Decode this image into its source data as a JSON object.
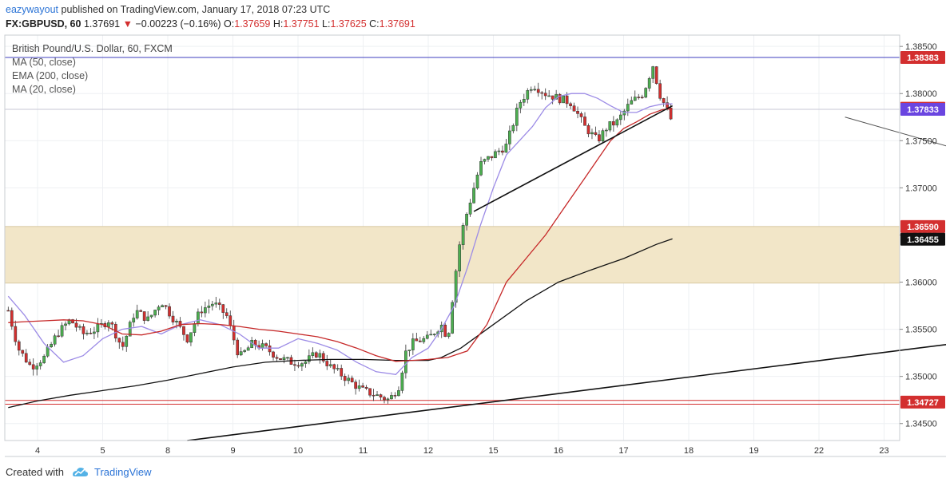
{
  "header": {
    "author": "eazywayout",
    "published_text": "published on TradingView.com, January 17, 2018 07:23 UTC",
    "symbol": "FX:GBPUSD, 60",
    "last": "1.37691",
    "change_arrow": "▼",
    "change": "−0.00223 (−0.16%)",
    "o_label": "O:",
    "o": "1.37659",
    "h_label": "H:",
    "h": "1.37751",
    "l_label": "L:",
    "l": "1.37625",
    "c_label": "C:",
    "c": "1.37691"
  },
  "legend": {
    "title": "British Pound/U.S. Dollar, 60, FXCM",
    "ma50": "MA (50, close)",
    "ema200": "EMA (200, close)",
    "ma20": "MA (20, close)"
  },
  "footer": {
    "created_with": "Created with",
    "brand": "TradingView"
  },
  "colors": {
    "up": "#4caf50",
    "down": "#d32f2f",
    "ma50": "#9c8be6",
    "ema200": "#111111",
    "ma20": "#c62828",
    "zone": "#f2e6c8",
    "hline_top": "#3f3fbf",
    "hline_bottom": "#d32f2f"
  },
  "chart_data": {
    "type": "candlestick",
    "title": "British Pound/U.S. Dollar, 60, FXCM",
    "x_ticks": [
      "4",
      "5",
      "8",
      "9",
      "10",
      "11",
      "12",
      "15",
      "16",
      "17",
      "18",
      "19",
      "22",
      "23"
    ],
    "y_ticks": [
      "1.38500",
      "1.38000",
      "1.37500",
      "1.37000",
      "1.36500",
      "1.36000",
      "1.35500",
      "1.35000",
      "1.34500"
    ],
    "ylim": [
      1.3432,
      1.3862
    ],
    "price_labels": [
      {
        "value": 1.38383,
        "text": "1.38383",
        "bg": "#d32f2f"
      },
      {
        "value": 1.37844,
        "text": "1.37844",
        "bg": "#d32f2f"
      },
      {
        "value": 1.37833,
        "text": "1.37833",
        "bg": "#6a45e0"
      },
      {
        "value": 1.3659,
        "text": "1.36590",
        "bg": "#d32f2f"
      },
      {
        "value": 1.36455,
        "text": "1.36455",
        "bg": "#111111"
      },
      {
        "value": 1.34727,
        "text": "1.34727",
        "bg": "#d32f2f"
      }
    ],
    "zone": {
      "top": 1.3659,
      "bottom": 1.3599
    },
    "horizontal_lines": [
      {
        "value": 1.38383,
        "color": "#3f3fbf"
      },
      {
        "value": 1.34745,
        "color": "#d32f2f"
      },
      {
        "value": 1.34705,
        "color": "#d32f2f"
      }
    ],
    "trendlines": [
      {
        "from": {
          "x": 2.3,
          "y": 1.3432
        },
        "to": {
          "x": 15.58,
          "y": 1.3548
        },
        "color": "#111111"
      },
      {
        "from": {
          "x": 6.7,
          "y": 1.3675
        },
        "to": {
          "x": 9.75,
          "y": 1.3787
        },
        "color": "#111111"
      },
      {
        "from": {
          "x": 12.4,
          "y": 1.3775
        },
        "to": {
          "x": 15.25,
          "y": 1.3719
        },
        "color": "#555555"
      }
    ],
    "series": [
      {
        "name": "MA (50, close)",
        "color": "#9c8be6",
        "x": [
          -0.45,
          -0.2,
          0.1,
          0.4,
          0.7,
          1.0,
          1.3,
          1.6,
          1.9,
          2.2,
          2.5,
          2.8,
          3.1,
          3.4,
          3.7,
          4.0,
          4.3,
          4.6,
          4.9,
          5.2,
          5.5,
          5.75,
          6.0,
          6.2,
          6.4,
          6.6,
          6.8,
          7.0,
          7.2,
          7.4,
          7.6,
          7.8,
          8.0,
          8.2,
          8.4,
          8.6,
          8.8,
          9.0,
          9.2,
          9.4,
          9.6,
          9.75
        ],
        "y": [
          1.3585,
          1.3565,
          1.3535,
          1.3515,
          1.3522,
          1.354,
          1.355,
          1.3553,
          1.3545,
          1.3555,
          1.356,
          1.3555,
          1.3545,
          1.353,
          1.353,
          1.354,
          1.3535,
          1.3528,
          1.3515,
          1.3505,
          1.3502,
          1.352,
          1.353,
          1.355,
          1.3575,
          1.3615,
          1.366,
          1.37,
          1.3735,
          1.375,
          1.3765,
          1.3785,
          1.3797,
          1.38,
          1.38,
          1.3795,
          1.3787,
          1.378,
          1.378,
          1.3786,
          1.3789,
          1.3789
        ]
      },
      {
        "name": "EMA (200, close)",
        "color": "#111111",
        "x": [
          -0.45,
          0.0,
          0.5,
          1.0,
          1.5,
          2.0,
          2.5,
          3.0,
          3.5,
          4.0,
          4.5,
          5.0,
          5.5,
          5.75,
          6.0,
          6.2,
          6.5,
          7.0,
          7.5,
          8.0,
          8.5,
          9.0,
          9.5,
          9.75
        ],
        "y": [
          1.3467,
          1.3474,
          1.348,
          1.3485,
          1.349,
          1.3496,
          1.3503,
          1.351,
          1.3515,
          1.3517,
          1.3518,
          1.3518,
          1.3517,
          1.3517,
          1.3517,
          1.352,
          1.353,
          1.3555,
          1.358,
          1.36,
          1.3613,
          1.3625,
          1.364,
          1.3646
        ]
      },
      {
        "name": "MA (20, close)",
        "color": "#c62828",
        "x": [
          -0.45,
          -0.2,
          0.1,
          0.4,
          0.7,
          1.0,
          1.3,
          1.6,
          1.9,
          2.2,
          2.5,
          2.8,
          3.1,
          3.4,
          3.7,
          4.0,
          4.3,
          4.6,
          4.9,
          5.2,
          5.5,
          5.75,
          6.0,
          6.3,
          6.6,
          6.9,
          7.2,
          7.5,
          7.8,
          8.1,
          8.4,
          8.6,
          8.8,
          9.0,
          9.2,
          9.4,
          9.6,
          9.75
        ],
        "y": [
          1.3557,
          1.3558,
          1.3559,
          1.356,
          1.3559,
          1.3555,
          1.3545,
          1.3544,
          1.3548,
          1.3555,
          1.3556,
          1.3555,
          1.3553,
          1.355,
          1.3548,
          1.3545,
          1.3542,
          1.3537,
          1.353,
          1.3522,
          1.3516,
          1.3517,
          1.3518,
          1.352,
          1.3527,
          1.3555,
          1.36,
          1.3625,
          1.365,
          1.368,
          1.371,
          1.373,
          1.375,
          1.3763,
          1.377,
          1.3778,
          1.3783,
          1.3784
        ]
      }
    ],
    "price_path": {
      "x": [
        -0.45,
        -0.3,
        -0.1,
        0.1,
        0.3,
        0.5,
        0.7,
        0.9,
        1.1,
        1.3,
        1.5,
        1.7,
        1.9,
        2.1,
        2.3,
        2.5,
        2.7,
        2.9,
        3.1,
        3.3,
        3.5,
        3.7,
        3.9,
        4.1,
        4.3,
        4.5,
        4.7,
        4.85,
        5.0,
        5.2,
        5.4,
        5.55,
        5.65,
        5.75,
        5.85,
        6.0,
        6.2,
        6.3,
        6.4,
        6.5,
        6.6,
        6.7,
        6.8,
        7.0,
        7.2,
        7.4,
        7.6,
        7.8,
        8.0,
        8.2,
        8.4,
        8.6,
        8.75,
        8.9,
        9.1,
        9.3,
        9.45,
        9.55,
        9.65,
        9.75
      ],
      "y": [
        1.357,
        1.353,
        1.351,
        1.352,
        1.3545,
        1.356,
        1.3545,
        1.355,
        1.356,
        1.353,
        1.357,
        1.356,
        1.358,
        1.356,
        1.354,
        1.357,
        1.3578,
        1.3565,
        1.352,
        1.3535,
        1.353,
        1.352,
        1.3515,
        1.3515,
        1.3525,
        1.351,
        1.35,
        1.3492,
        1.3485,
        1.348,
        1.3475,
        1.349,
        1.3525,
        1.3535,
        1.3538,
        1.354,
        1.3555,
        1.354,
        1.36,
        1.365,
        1.3675,
        1.37,
        1.3725,
        1.3735,
        1.3745,
        1.379,
        1.381,
        1.38,
        1.3795,
        1.379,
        1.3765,
        1.375,
        1.3765,
        1.377,
        1.379,
        1.38,
        1.383,
        1.38,
        1.3785,
        1.3769
      ]
    }
  }
}
